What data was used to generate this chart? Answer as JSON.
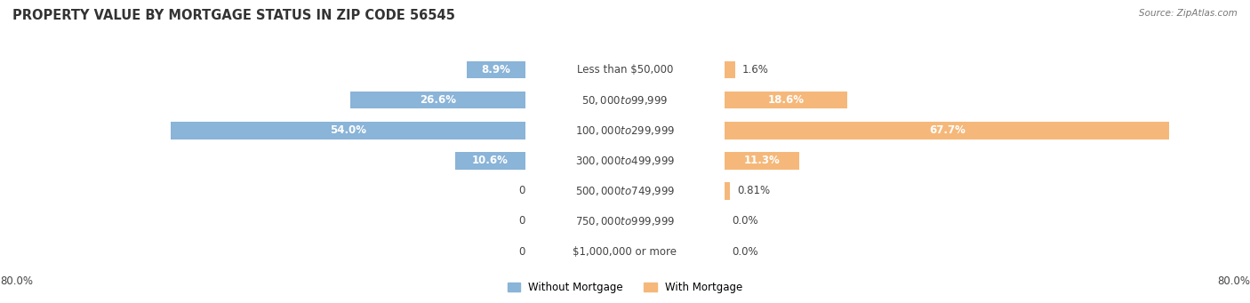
{
  "title": "PROPERTY VALUE BY MORTGAGE STATUS IN ZIP CODE 56545",
  "source": "Source: ZipAtlas.com",
  "categories": [
    "Less than $50,000",
    "$50,000 to $99,999",
    "$100,000 to $299,999",
    "$300,000 to $499,999",
    "$500,000 to $749,999",
    "$750,000 to $999,999",
    "$1,000,000 or more"
  ],
  "without_mortgage": [
    8.9,
    26.6,
    54.0,
    10.6,
    0.0,
    0.0,
    0.0
  ],
  "with_mortgage": [
    1.6,
    18.6,
    67.7,
    11.3,
    0.81,
    0.0,
    0.0
  ],
  "without_mortgage_color": "#8ab4d8",
  "with_mortgage_color": "#f5b87a",
  "row_bg_colors": [
    "#efefef",
    "#e5e5e5"
  ],
  "max_val": 80.0,
  "title_fontsize": 10.5,
  "label_fontsize": 8.5,
  "category_fontsize": 8.5,
  "bar_height": 0.58,
  "title_color": "#333333",
  "source_color": "#777777",
  "text_dark": "#444444",
  "text_white": "#ffffff",
  "axis_label": "80.0%"
}
